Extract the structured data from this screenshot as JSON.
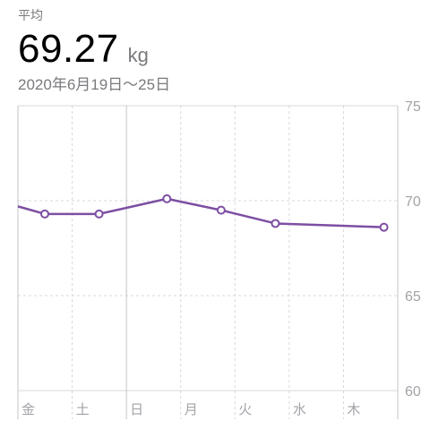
{
  "summary": {
    "label": "平均",
    "value": "69.27",
    "unit": "kg",
    "date_range": "2020年6月19日〜25日"
  },
  "colors": {
    "line": "#7d4fa3",
    "grid": "#d8d8dc",
    "grid_strong": "#c4c4c8",
    "tick": "#a3a3a8",
    "point_fill": "#ffffff"
  },
  "chart_data": {
    "type": "line",
    "categories": [
      "金",
      "土",
      "日",
      "月",
      "火",
      "水",
      "木"
    ],
    "y_ticks": [
      75,
      70,
      65,
      60
    ],
    "ylim": [
      60,
      75
    ],
    "grid": true,
    "series": [
      {
        "points": [
          {
            "x": 0.0,
            "y": 69.3
          },
          {
            "x": 1.0,
            "y": 69.3
          },
          {
            "x": 2.25,
            "y": 70.1
          },
          {
            "x": 3.25,
            "y": 69.5
          },
          {
            "x": 4.25,
            "y": 68.8
          },
          {
            "x": 6.25,
            "y": 68.6
          }
        ],
        "lead_in": {
          "x": -0.5,
          "y": 69.7
        }
      }
    ]
  }
}
